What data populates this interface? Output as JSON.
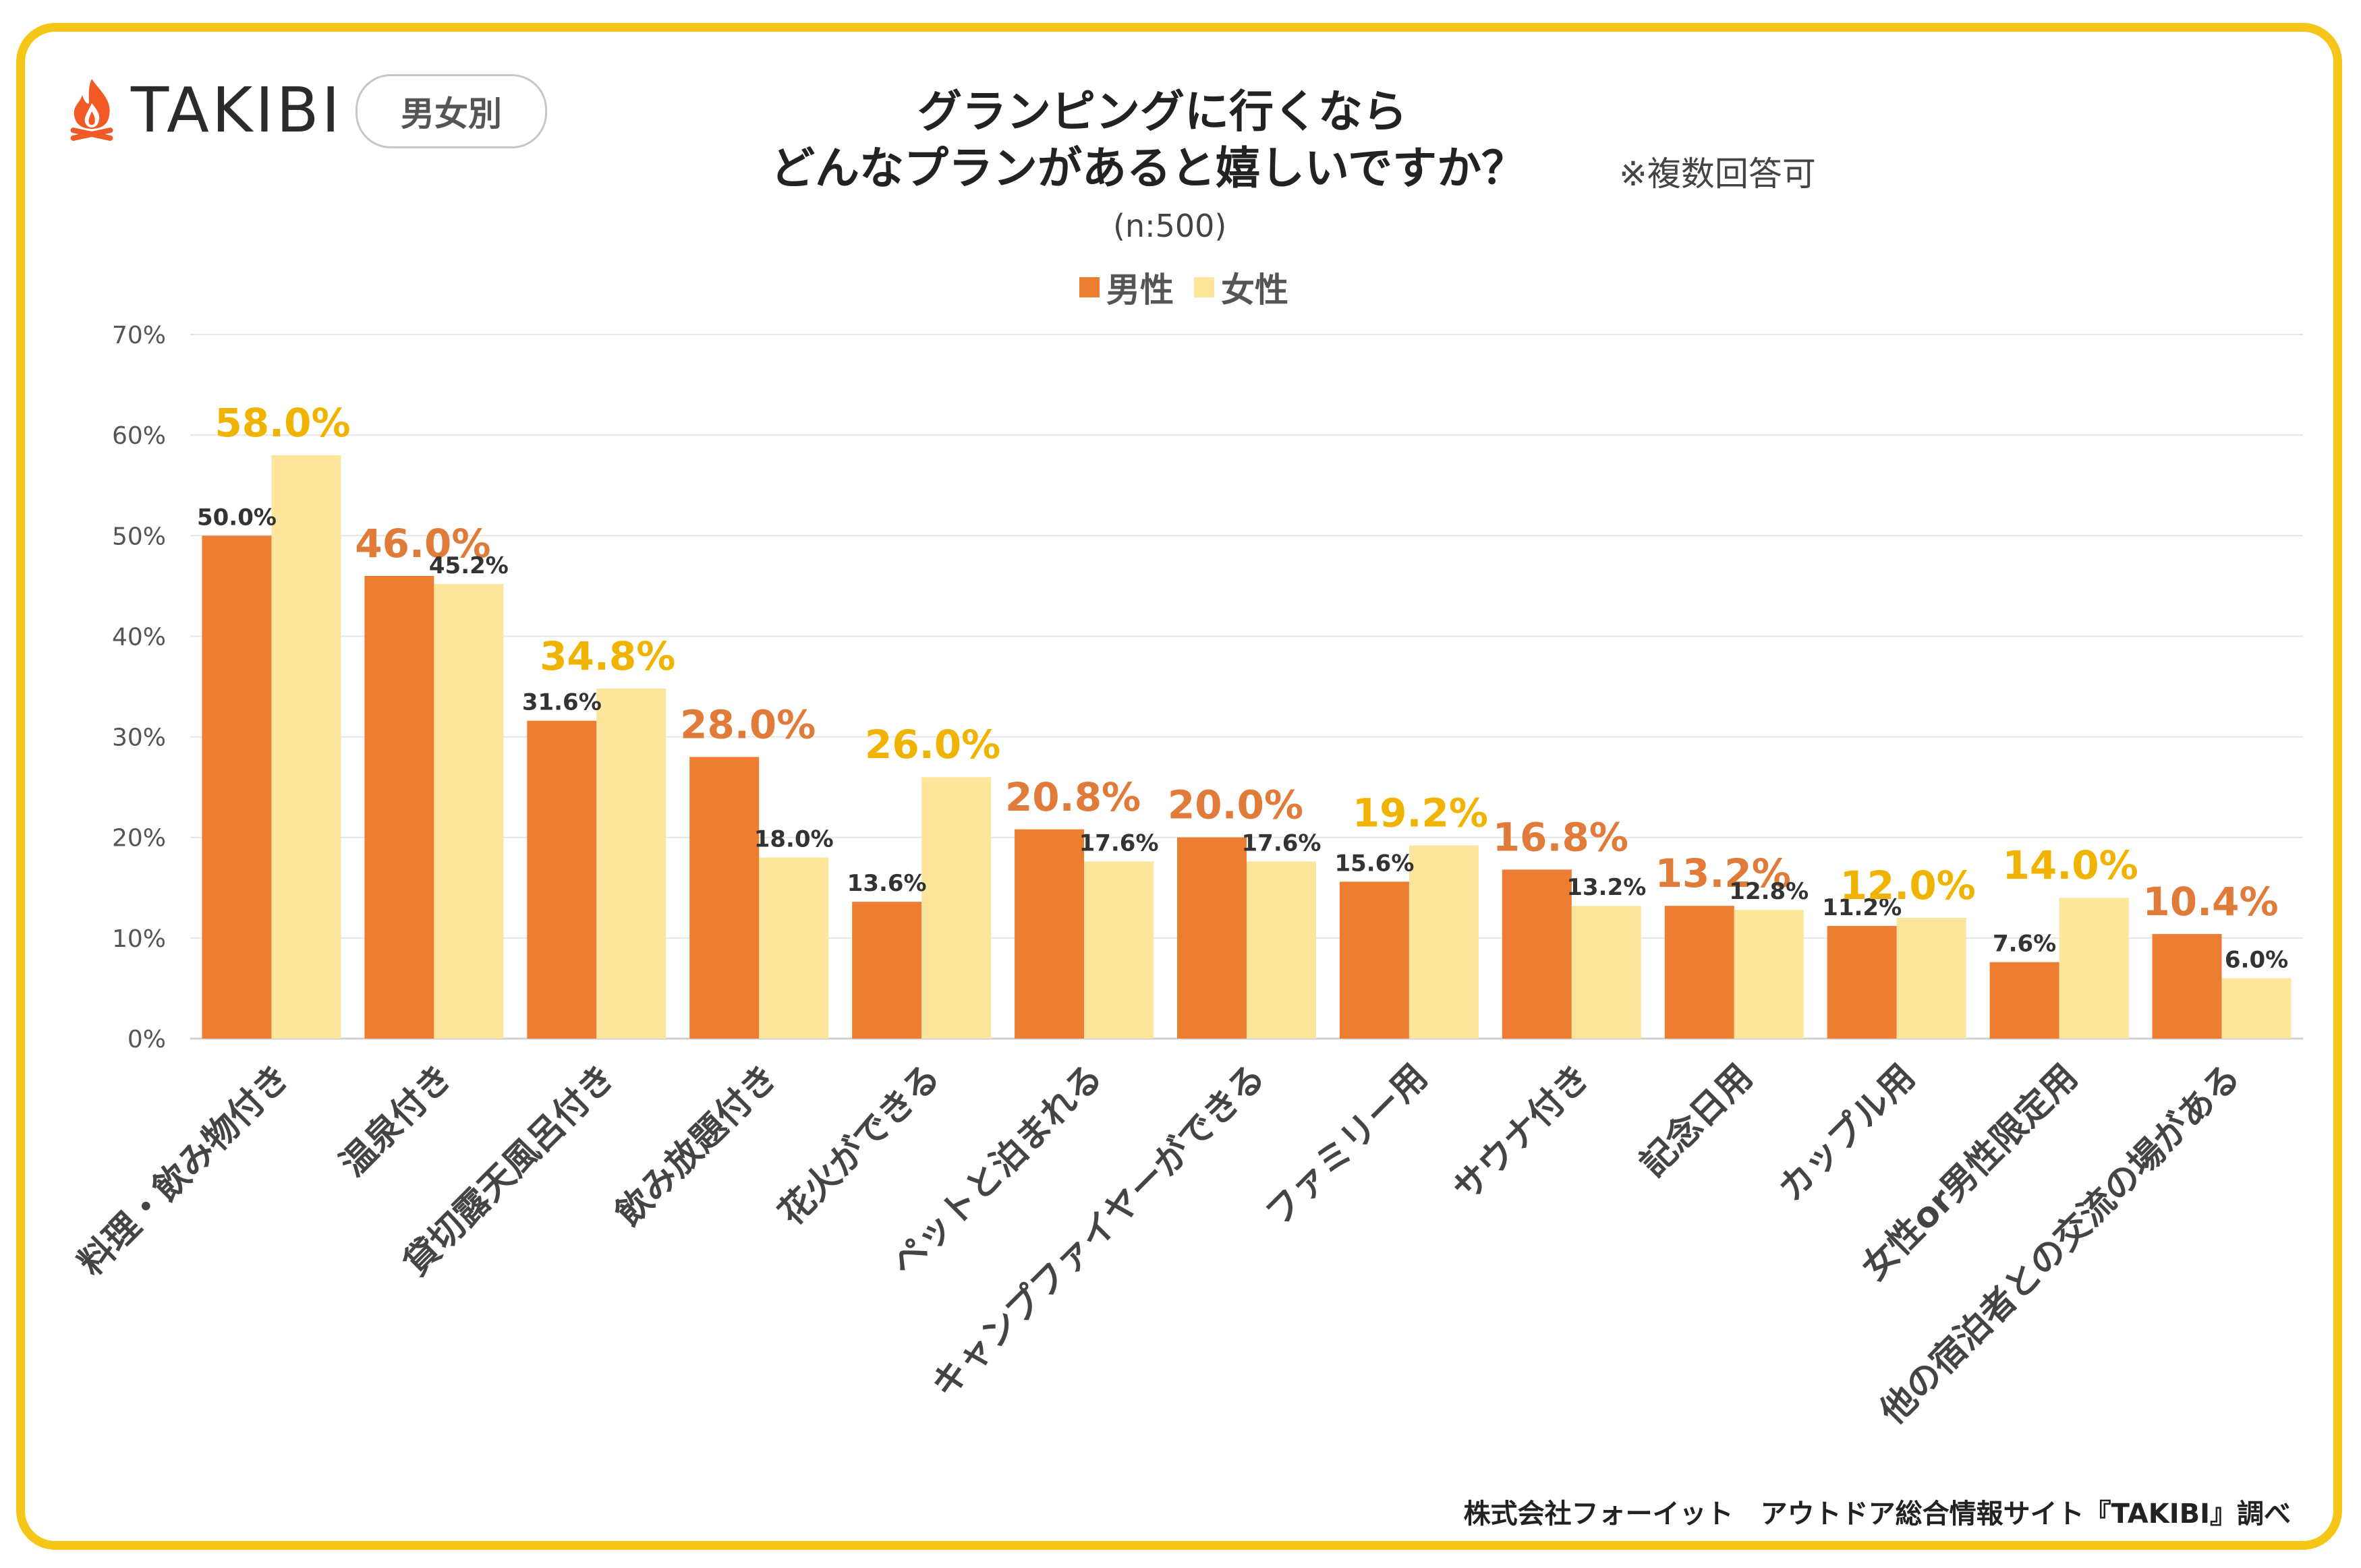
{
  "brand": {
    "name": "TAKIBI",
    "icon": "campfire-icon",
    "color": "#f15a24"
  },
  "badge": "男女別",
  "title": {
    "line1": "グランピングに行くなら",
    "line2": "どんなプランがあると嬉しいですか？"
  },
  "note": "※複数回答可",
  "sample": "(n:500)",
  "footer": "株式会社フォーイット　アウトドア総合情報サイト『TAKIBI』調べ",
  "colors": {
    "male": "#ed7d31",
    "female": "#fde59b",
    "male_label": "#e07b3a",
    "female_label": "#f0b400",
    "frame": "#f5c518"
  },
  "chart_data": {
    "type": "bar",
    "title": "グランピングに行くならどんなプランがあると嬉しいですか？",
    "ylim": [
      0,
      70
    ],
    "yticks": [
      "0%",
      "10%",
      "20%",
      "30%",
      "40%",
      "50%",
      "60%",
      "70%"
    ],
    "categories": [
      "料理・飲み物付き",
      "温泉付き",
      "貸切露天風呂付き",
      "飲み放題付き",
      "花火ができる",
      "ペットと泊まれる",
      "キャンプファイヤーができる",
      "ファミリー用",
      "サウナ付き",
      "記念日用",
      "カップル用",
      "女性or男性限定用",
      "他の宿泊者との交流の場がある"
    ],
    "series": [
      {
        "name": "男性",
        "values": [
          50.0,
          46.0,
          31.6,
          28.0,
          13.6,
          20.8,
          20.0,
          15.6,
          16.8,
          13.2,
          11.2,
          7.6,
          10.4
        ],
        "labels": [
          "50.0%",
          "46.0%",
          "31.6%",
          "28.0%",
          "13.6%",
          "20.8%",
          "20.0%",
          "15.6%",
          "16.8%",
          "13.2%",
          "11.2%",
          "7.6%",
          "10.4%"
        ]
      },
      {
        "name": "女性",
        "values": [
          58.0,
          45.2,
          34.8,
          18.0,
          26.0,
          17.6,
          17.6,
          19.2,
          13.2,
          12.8,
          12.0,
          14.0,
          6.0
        ],
        "labels": [
          "58.0%",
          "45.2%",
          "34.8%",
          "18.0%",
          "26.0%",
          "17.6%",
          "17.6%",
          "19.2%",
          "13.2%",
          "12.8%",
          "12.0%",
          "14.0%",
          "6.0%"
        ]
      }
    ],
    "grid": true,
    "legend": "top-center"
  }
}
